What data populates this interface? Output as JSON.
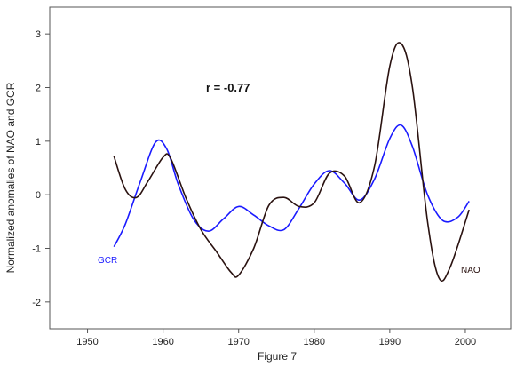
{
  "chart_data": {
    "type": "line",
    "title": "",
    "xlabel": "Figure 7",
    "ylabel": "Normalized anomalies of NAO and GCR",
    "xlim": [
      1945,
      2006
    ],
    "ylim": [
      -2.5,
      3.5
    ],
    "xticks": [
      1950,
      1960,
      1970,
      1980,
      1990,
      2000
    ],
    "yticks": [
      -2,
      -1,
      0,
      1,
      2,
      3
    ],
    "grid": false,
    "annotation": "r = -0.77",
    "series": [
      {
        "name": "GCR",
        "color": "#1a1aff",
        "x": [
          1953.5,
          1955,
          1957,
          1959,
          1960.5,
          1962,
          1964,
          1966,
          1968,
          1970,
          1972,
          1974,
          1976,
          1978,
          1980,
          1982,
          1984,
          1986,
          1988,
          1990,
          1991.5,
          1993,
          1995,
          1997,
          1999,
          2000.5
        ],
        "y": [
          -0.97,
          -0.55,
          0.25,
          0.98,
          0.85,
          0.2,
          -0.45,
          -0.68,
          -0.45,
          -0.22,
          -0.38,
          -0.58,
          -0.65,
          -0.25,
          0.2,
          0.45,
          0.22,
          -0.1,
          0.3,
          1.05,
          1.3,
          0.9,
          0.0,
          -0.48,
          -0.42,
          -0.12
        ]
      },
      {
        "name": "NAO",
        "color": "#2a1210",
        "x": [
          1953.5,
          1955,
          1956.5,
          1958,
          1960,
          1961,
          1963,
          1965,
          1967,
          1969,
          1970,
          1972,
          1974,
          1976,
          1978,
          1980,
          1982,
          1984,
          1986,
          1988,
          1990,
          1991.5,
          1993,
          1995,
          1996.5,
          1998,
          2000.5
        ],
        "y": [
          0.72,
          0.1,
          -0.05,
          0.25,
          0.7,
          0.68,
          -0.05,
          -0.65,
          -1.05,
          -1.45,
          -1.5,
          -1.0,
          -0.2,
          -0.05,
          -0.22,
          -0.15,
          0.4,
          0.35,
          -0.15,
          0.55,
          2.4,
          2.82,
          2.0,
          -0.5,
          -1.55,
          -1.35,
          -0.28
        ]
      }
    ]
  }
}
